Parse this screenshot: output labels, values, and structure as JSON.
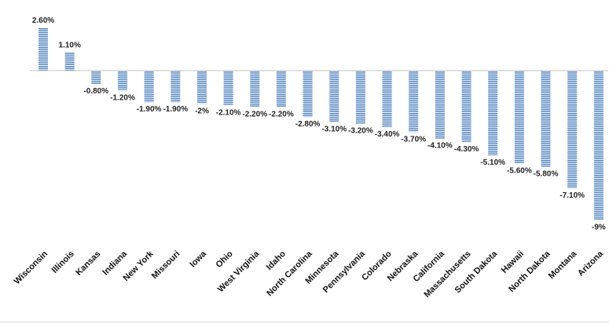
{
  "chart_data": {
    "type": "bar",
    "categories": [
      "Wisconsin",
      "Illinois",
      "Kansas",
      "Indiana",
      "New York",
      "Missouri",
      "Iowa",
      "Ohio",
      "West Virginia",
      "Idaho",
      "North Carolina",
      "Minnesota",
      "Pennsylvania",
      "Colorado",
      "Nebraska",
      "California",
      "Massachusetts",
      "South Dakota",
      "Hawaii",
      "North Dakota",
      "Montana",
      "Arizona"
    ],
    "values": [
      2.6,
      1.1,
      -0.8,
      -1.2,
      -1.9,
      -1.9,
      -2,
      -2.1,
      -2.2,
      -2.2,
      -2.8,
      -3.1,
      -3.2,
      -3.4,
      -3.7,
      -4.1,
      -4.3,
      -5.1,
      -5.6,
      -5.8,
      -7.1,
      -9
    ],
    "value_labels": [
      "2.60%",
      "1.10%",
      "-0.80%",
      "-1.20%",
      "-1.90%",
      "-1.90%",
      "-2%",
      "-2.10%",
      "-2.20%",
      "-2.20%",
      "-2.80%",
      "-3.10%",
      "-3.20%",
      "-3.40%",
      "-3.70%",
      "-4.10%",
      "-4.30%",
      "-5.10%",
      "-5.60%",
      "-5.80%",
      "-7.10%",
      "-9%"
    ],
    "ylim": [
      -9,
      2.6
    ],
    "grid": false,
    "legend": "none",
    "bar_color": "#4f81bd",
    "bar_stripe_color": "#ffffff",
    "axis_color": "#bfbfbf"
  }
}
